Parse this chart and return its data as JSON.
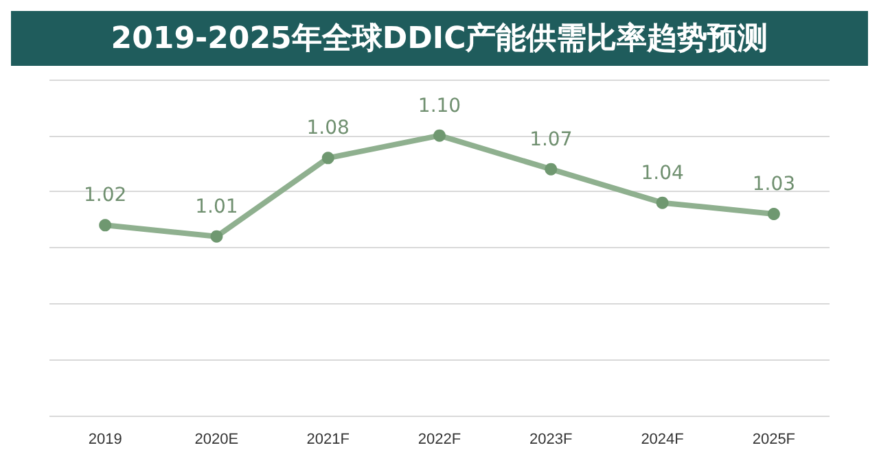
{
  "chart_data": {
    "type": "line",
    "title": "2019-2025年全球DDIC产能供需比率趋势预测",
    "categories": [
      "2019",
      "2020E",
      "2021F",
      "2022F",
      "2023F",
      "2024F",
      "2025F"
    ],
    "series": [
      {
        "color": "#8fb08f",
        "values": [
          1.02,
          1.01,
          1.08,
          1.1,
          1.07,
          1.04,
          1.03
        ],
        "value_labels": [
          "1.02",
          "1.01",
          "1.08",
          "1.10",
          "1.07",
          "1.04",
          "1.03"
        ]
      }
    ],
    "ylim": [
      0.85,
      1.15
    ],
    "yticks": [
      0.85,
      0.9,
      0.95,
      1.0,
      1.05,
      1.1,
      1.15
    ],
    "tick_labels": "x",
    "grid": "y",
    "marker": "circle",
    "line_style": "solid"
  }
}
